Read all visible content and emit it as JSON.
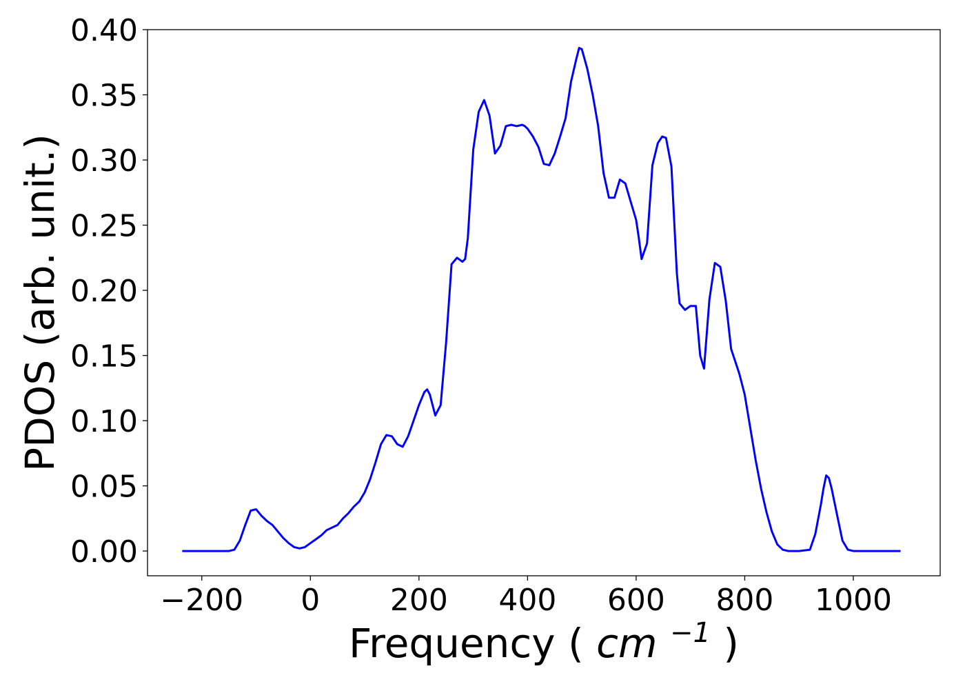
{
  "chart_data": {
    "type": "line",
    "title": "",
    "xlabel": "Frequency",
    "xlabel_unit": "cm",
    "xlabel_unit_exponent": "−1",
    "ylabel": "PDOS (arb. unit.)",
    "xlim": [
      -300,
      1160
    ],
    "ylim": [
      -0.019,
      0.4
    ],
    "x_ticks": [
      -200,
      0,
      200,
      400,
      600,
      800,
      1000
    ],
    "x_tick_labels": [
      "−200",
      "0",
      "200",
      "400",
      "600",
      "800",
      "1000"
    ],
    "y_ticks": [
      0.0,
      0.05,
      0.1,
      0.15,
      0.2,
      0.25,
      0.3,
      0.35,
      0.4
    ],
    "y_tick_labels": [
      "0.00",
      "0.05",
      "0.10",
      "0.15",
      "0.20",
      "0.25",
      "0.30",
      "0.35",
      "0.40"
    ],
    "grid": false,
    "legend": "none",
    "series": [
      {
        "color": "#0000ff",
        "x": [
          -236,
          -220,
          -200,
          -180,
          -160,
          -150,
          -140,
          -130,
          -120,
          -110,
          -100,
          -90,
          -80,
          -70,
          -60,
          -50,
          -40,
          -30,
          -20,
          -10,
          0,
          10,
          20,
          30,
          40,
          50,
          60,
          70,
          80,
          90,
          100,
          110,
          120,
          130,
          140,
          150,
          160,
          170,
          180,
          190,
          200,
          210,
          215,
          220,
          230,
          240,
          250,
          260,
          270,
          280,
          285,
          290,
          300,
          310,
          320,
          330,
          340,
          350,
          360,
          370,
          380,
          390,
          395,
          400,
          410,
          420,
          430,
          440,
          450,
          460,
          470,
          480,
          490,
          495,
          500,
          510,
          520,
          530,
          540,
          550,
          560,
          570,
          580,
          590,
          600,
          605,
          610,
          620,
          630,
          640,
          648,
          655,
          665,
          675,
          680,
          690,
          700,
          710,
          718,
          725,
          735,
          745,
          755,
          765,
          775,
          790,
          800,
          810,
          820,
          830,
          840,
          850,
          860,
          870,
          880,
          900,
          920,
          930,
          940,
          945,
          950,
          955,
          960,
          970,
          980,
          990,
          1000,
          1020,
          1050,
          1087
        ],
        "y": [
          0.0,
          0.0,
          0.0,
          0.0,
          0.0,
          0.0,
          0.001,
          0.008,
          0.02,
          0.031,
          0.032,
          0.027,
          0.023,
          0.02,
          0.015,
          0.01,
          0.006,
          0.003,
          0.002,
          0.003,
          0.006,
          0.009,
          0.012,
          0.016,
          0.018,
          0.02,
          0.025,
          0.029,
          0.034,
          0.038,
          0.045,
          0.055,
          0.068,
          0.082,
          0.089,
          0.088,
          0.082,
          0.08,
          0.088,
          0.1,
          0.112,
          0.122,
          0.124,
          0.12,
          0.104,
          0.112,
          0.16,
          0.22,
          0.225,
          0.222,
          0.224,
          0.24,
          0.308,
          0.337,
          0.346,
          0.334,
          0.305,
          0.311,
          0.326,
          0.327,
          0.326,
          0.327,
          0.326,
          0.324,
          0.318,
          0.31,
          0.297,
          0.296,
          0.305,
          0.318,
          0.332,
          0.36,
          0.378,
          0.386,
          0.385,
          0.37,
          0.35,
          0.326,
          0.29,
          0.271,
          0.271,
          0.285,
          0.282,
          0.268,
          0.254,
          0.24,
          0.224,
          0.236,
          0.296,
          0.313,
          0.318,
          0.317,
          0.295,
          0.213,
          0.19,
          0.185,
          0.188,
          0.188,
          0.15,
          0.14,
          0.193,
          0.221,
          0.218,
          0.192,
          0.155,
          0.136,
          0.12,
          0.095,
          0.07,
          0.048,
          0.03,
          0.015,
          0.005,
          0.001,
          0.0,
          0.0,
          0.001,
          0.013,
          0.035,
          0.048,
          0.058,
          0.056,
          0.048,
          0.028,
          0.008,
          0.001,
          0.0,
          0.0,
          0.0,
          0.0
        ]
      }
    ]
  }
}
